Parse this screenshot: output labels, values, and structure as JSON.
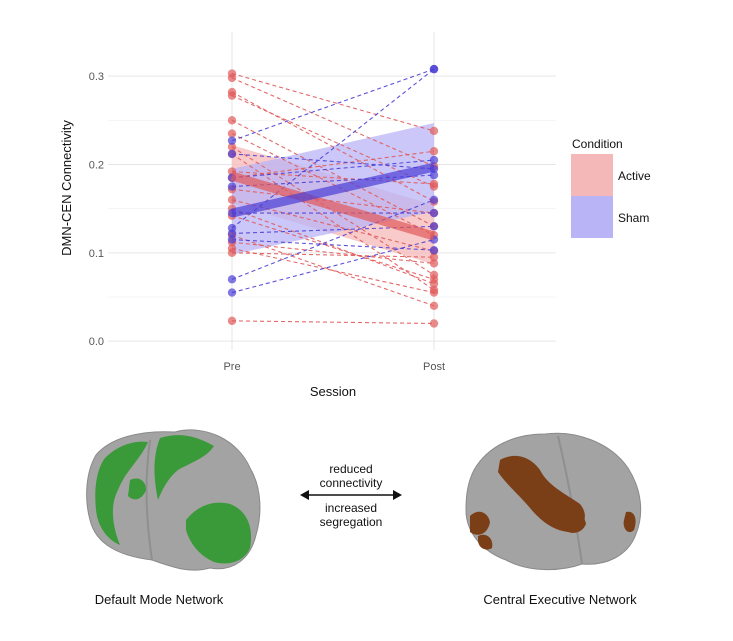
{
  "chart_data": {
    "type": "line",
    "title": "",
    "xlabel": "Session",
    "ylabel": "DMN-CEN Connectivity",
    "categories": [
      "Pre",
      "Post"
    ],
    "ylim": [
      -0.01,
      0.35
    ],
    "yticks": [
      0.0,
      0.1,
      0.2,
      0.3
    ],
    "ytick_labels": [
      "0.0",
      "0.1",
      "0.2",
      "0.3"
    ],
    "legend": {
      "title": "Condition",
      "position": "right",
      "entries": [
        "Active",
        "Sham"
      ]
    },
    "colors": {
      "Active": "#e15a5a",
      "Sham": "#4b3fd6"
    },
    "fill_colors": {
      "Active": "#f5b8b8",
      "Sham": "#b9b4f5"
    },
    "series": [
      {
        "name": "Active",
        "kind": "subject",
        "pairs": [
          [
            0.303,
            0.238
          ],
          [
            0.298,
            0.198
          ],
          [
            0.282,
            0.158
          ],
          [
            0.278,
            0.175
          ],
          [
            0.25,
            0.13
          ],
          [
            0.235,
            0.12
          ],
          [
            0.22,
            0.075
          ],
          [
            0.212,
            0.058
          ],
          [
            0.192,
            0.178
          ],
          [
            0.185,
            0.215
          ],
          [
            0.172,
            0.145
          ],
          [
            0.16,
            0.102
          ],
          [
            0.15,
            0.065
          ],
          [
            0.142,
            0.07
          ],
          [
            0.12,
            0.04
          ],
          [
            0.112,
            0.088
          ],
          [
            0.105,
            0.055
          ],
          [
            0.1,
            0.095
          ],
          [
            0.023,
            0.02
          ]
        ]
      },
      {
        "name": "Sham",
        "kind": "subject",
        "pairs": [
          [
            0.227,
            0.308
          ],
          [
            0.212,
            0.195
          ],
          [
            0.185,
            0.205
          ],
          [
            0.175,
            0.188
          ],
          [
            0.145,
            0.145
          ],
          [
            0.128,
            0.308
          ],
          [
            0.122,
            0.13
          ],
          [
            0.115,
            0.103
          ],
          [
            0.07,
            0.16
          ],
          [
            0.055,
            0.115
          ]
        ]
      },
      {
        "name": "Active",
        "kind": "mean",
        "values": [
          0.187,
          0.119
        ],
        "ci_lower": [
          0.156,
          0.087
        ],
        "ci_upper": [
          0.222,
          0.154
        ]
      },
      {
        "name": "Sham",
        "kind": "mean",
        "values": [
          0.145,
          0.197
        ],
        "ci_lower": [
          0.098,
          0.147
        ],
        "ci_upper": [
          0.195,
          0.247
        ]
      }
    ]
  },
  "figure": {
    "left_brain_caption": "Default Mode Network",
    "right_brain_caption": "Central Executive Network",
    "arrow_text_top": "reduced\nconnectivity",
    "arrow_text_bottom": "increased\nsegregation",
    "dmn_color": "#3a9a3a",
    "cen_color": "#7b3f18",
    "brain_color": "#a3a3a3"
  }
}
